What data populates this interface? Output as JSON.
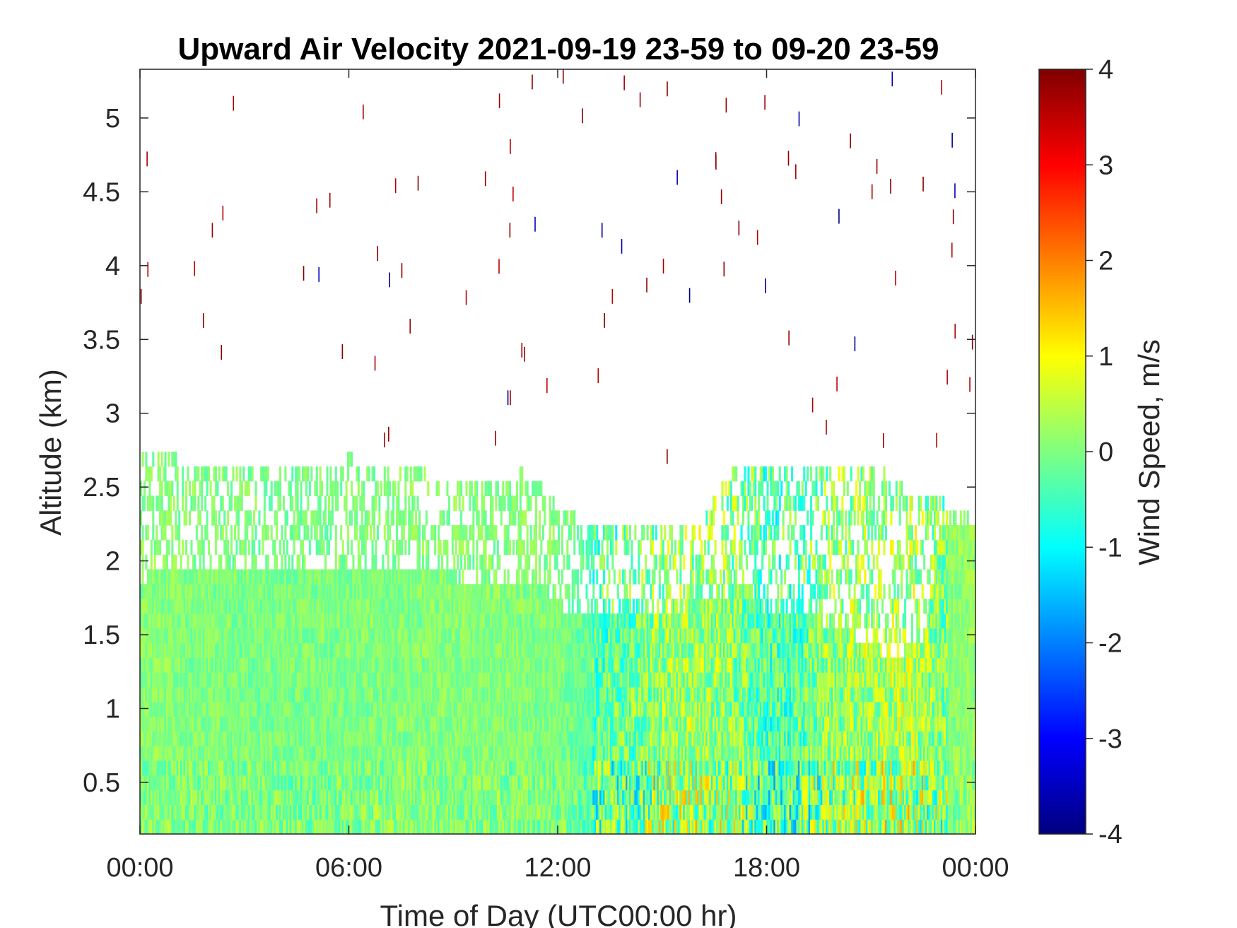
{
  "chart_data": {
    "type": "heatmap",
    "title": "Upward Air Velocity 2021-09-19 23-59 to 09-20 23-59",
    "xlabel": "Time of Day (UTC00:00 hr)",
    "ylabel": "Altitude (km)",
    "x_tick_labels": [
      "00:00",
      "06:00",
      "12:00",
      "18:00",
      "00:00"
    ],
    "x_ticks_hours": [
      0,
      6,
      12,
      18,
      24
    ],
    "xlim_hours": [
      0,
      24
    ],
    "y_ticks": [
      0.5,
      1,
      1.5,
      2,
      2.5,
      3,
      3.5,
      4,
      4.5,
      5
    ],
    "y_tick_labels": [
      "0.5",
      "1",
      "1.5",
      "2",
      "2.5",
      "3",
      "3.5",
      "4",
      "4.5",
      "5"
    ],
    "ylim": [
      0.15,
      5.33
    ],
    "grid": false,
    "colormap": "jet",
    "colorbar": {
      "label": "Wind Speed, m/s",
      "ticks": [
        -4,
        -3,
        -2,
        -1,
        0,
        1,
        2,
        3,
        4
      ],
      "tick_labels": [
        "-4",
        "-3",
        "-2",
        "-1",
        "0",
        "1",
        "2",
        "3",
        "4"
      ],
      "clim": [
        -4,
        4
      ]
    },
    "data_top_altitude_km": [
      [
        0.0,
        2.65
      ],
      [
        1.0,
        2.65
      ],
      [
        2.0,
        2.55
      ],
      [
        3.0,
        2.6
      ],
      [
        4.0,
        2.6
      ],
      [
        5.0,
        2.55
      ],
      [
        6.0,
        2.65
      ],
      [
        7.0,
        2.55
      ],
      [
        8.0,
        2.55
      ],
      [
        9.0,
        2.5
      ],
      [
        10.0,
        2.45
      ],
      [
        11.0,
        2.55
      ],
      [
        12.0,
        2.35
      ],
      [
        13.0,
        2.15
      ],
      [
        14.0,
        2.15
      ],
      [
        15.0,
        2.15
      ],
      [
        16.0,
        2.2
      ],
      [
        17.0,
        2.55
      ],
      [
        18.0,
        2.55
      ],
      [
        19.0,
        2.55
      ],
      [
        20.0,
        2.6
      ],
      [
        21.0,
        2.6
      ],
      [
        22.0,
        2.45
      ],
      [
        23.0,
        2.35
      ],
      [
        24.0,
        2.25
      ]
    ],
    "solid_layer_top_km": [
      [
        0.0,
        1.8
      ],
      [
        0.5,
        1.9
      ],
      [
        3.5,
        1.9
      ],
      [
        6.0,
        1.9
      ],
      [
        11.5,
        1.8
      ],
      [
        12.0,
        1.65
      ],
      [
        13.5,
        1.6
      ],
      [
        15.0,
        1.6
      ],
      [
        16.5,
        1.7
      ],
      [
        17.5,
        1.8
      ],
      [
        18.0,
        1.55
      ],
      [
        19.5,
        1.55
      ],
      [
        20.5,
        1.45
      ],
      [
        21.5,
        1.3
      ],
      [
        22.5,
        1.4
      ],
      [
        23.0,
        2.2
      ],
      [
        24.0,
        2.2
      ]
    ],
    "mean_velocity_ms": [
      [
        0.0,
        0.1
      ],
      [
        2.0,
        0.0
      ],
      [
        4.0,
        -0.05
      ],
      [
        6.0,
        0.0
      ],
      [
        8.0,
        0.05
      ],
      [
        10.0,
        0.05
      ],
      [
        12.0,
        0.0
      ],
      [
        13.0,
        -0.3
      ],
      [
        14.0,
        -0.2
      ],
      [
        15.0,
        0.2
      ],
      [
        16.0,
        0.3
      ],
      [
        17.0,
        0.1
      ],
      [
        18.0,
        -0.4
      ],
      [
        19.0,
        -0.3
      ],
      [
        20.0,
        0.2
      ],
      [
        21.0,
        0.3
      ],
      [
        22.0,
        0.4
      ],
      [
        23.0,
        0.0
      ],
      [
        24.0,
        0.2
      ]
    ]
  }
}
